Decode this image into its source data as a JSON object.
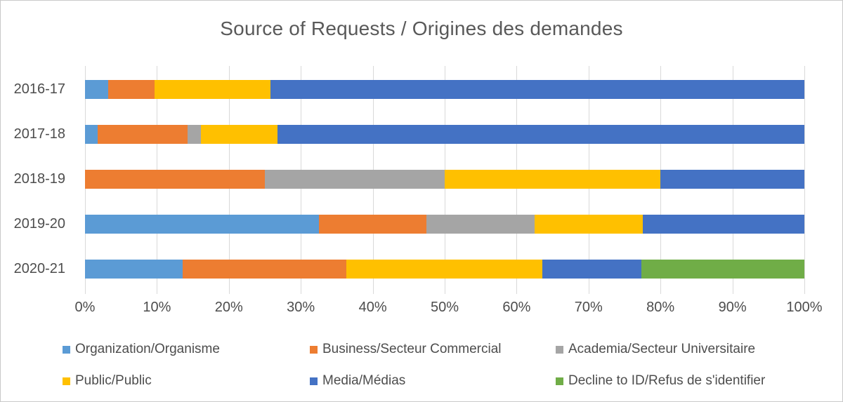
{
  "chart_data": {
    "type": "bar",
    "variant": "horizontal-100%-stacked",
    "title": "Source of Requests / Origines des demandes",
    "categories": [
      "2016-17",
      "2017-18",
      "2018-19",
      "2019-20",
      "2020-21"
    ],
    "series": [
      {
        "name": "Organization/Organisme",
        "color": "#5B9BD5",
        "values": [
          3.2,
          1.8,
          0,
          32.5,
          13.6
        ]
      },
      {
        "name": "Business/Secteur Commercial",
        "color": "#ED7D31",
        "values": [
          6.5,
          12.5,
          25,
          15,
          22.7
        ]
      },
      {
        "name": "Academia/Secteur Universitaire",
        "color": "#A5A5A5",
        "values": [
          0,
          1.8,
          25,
          15,
          0
        ]
      },
      {
        "name": "Public/Public",
        "color": "#FFC000",
        "values": [
          16.1,
          10.7,
          30,
          15,
          27.3
        ]
      },
      {
        "name": "Media/Médias",
        "color": "#4472C4",
        "values": [
          74.2,
          73.2,
          20,
          22.5,
          13.7
        ]
      },
      {
        "name": "Decline to ID/Refus de s'identifier",
        "color": "#70AD47",
        "values": [
          0,
          0,
          0,
          0,
          22.7
        ]
      }
    ],
    "x_ticks": [
      "0%",
      "10%",
      "20%",
      "30%",
      "40%",
      "50%",
      "60%",
      "70%",
      "80%",
      "90%",
      "100%"
    ],
    "xlim": [
      0,
      100
    ],
    "gridlines": true,
    "gridline_color": "#D9D9D9",
    "legend_position": "bottom",
    "title_color": "#595959",
    "label_color": "#4D4D4D"
  }
}
